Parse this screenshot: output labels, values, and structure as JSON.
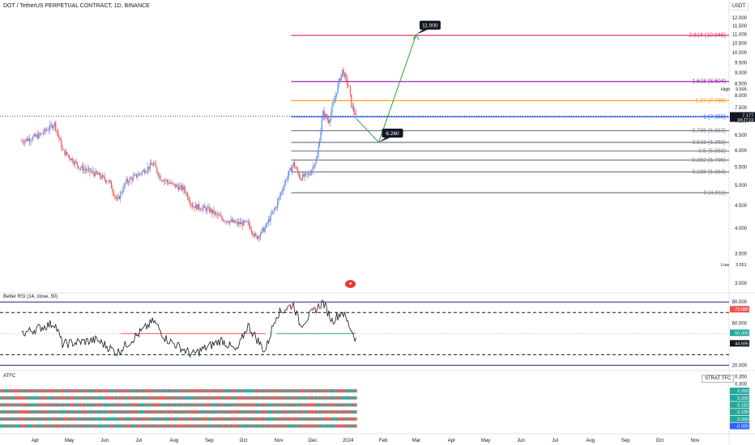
{
  "header": {
    "title": "DOT / TetherUS PERPETUAL CONTRACT, 1D, BINANCE",
    "currency": "USDT"
  },
  "indicators": {
    "rsi_title": "Better RSI (14, close, 50)",
    "atfc_title": "ATFC",
    "strat_label": "STRAT TFC",
    "rsi_tags": [
      "73.086",
      "50.000",
      "44.595"
    ],
    "atfc_tags": [
      "0.250",
      "0.200",
      "0.150",
      "0.100",
      "0.050",
      "-0.000"
    ]
  },
  "colors": {
    "up": "#26a69a",
    "down": "#ef5350",
    "candle_up": "#5b8def",
    "fib_top": "#e91e63",
    "fib_1618": "#9c27b0",
    "fib_127": "#ff9800",
    "fib_1": "#2962ff",
    "fib_gray": "#787b86",
    "arrow": "#2e9d34",
    "rsi_band": "#1a237e",
    "rsi_line": "#131722"
  },
  "chart_data": {
    "type": "candlestick",
    "symbol": "DOT/USDT",
    "timeframe": "1D",
    "y_axis": {
      "scale": "log",
      "ticks": [
        "12.000",
        "11.500",
        "11.000",
        "10.500",
        "10.000",
        "9.500",
        "9.000",
        "8.500",
        "8.000",
        "7.500",
        "7.000",
        "6.500",
        "6.000",
        "5.500",
        "5.000",
        "4.500",
        "4.000",
        "3.500",
        "3.000"
      ],
      "ylim": [
        3.0,
        12.0
      ]
    },
    "x_axis": {
      "ticks": [
        "Apr",
        "May",
        "Jun",
        "Jul",
        "Aug",
        "Sep",
        "Oct",
        "Nov",
        "Dec",
        "2024",
        "Feb",
        "Mar",
        "Apr",
        "May",
        "Jun",
        "Jul",
        "Aug",
        "Sep",
        "Oct",
        "Nov"
      ]
    },
    "price_path": [
      {
        "date": "2023-03-20",
        "value": 6.3
      },
      {
        "date": "2023-04-05",
        "value": 6.5
      },
      {
        "date": "2023-04-18",
        "value": 6.9
      },
      {
        "date": "2023-04-25",
        "value": 6.0
      },
      {
        "date": "2023-05-10",
        "value": 5.5
      },
      {
        "date": "2023-05-25",
        "value": 5.3
      },
      {
        "date": "2023-06-05",
        "value": 5.1
      },
      {
        "date": "2023-06-12",
        "value": 4.6
      },
      {
        "date": "2023-06-20",
        "value": 5.1
      },
      {
        "date": "2023-07-01",
        "value": 5.3
      },
      {
        "date": "2023-07-14",
        "value": 5.6
      },
      {
        "date": "2023-07-20",
        "value": 5.2
      },
      {
        "date": "2023-08-01",
        "value": 5.0
      },
      {
        "date": "2023-08-10",
        "value": 4.9
      },
      {
        "date": "2023-08-17",
        "value": 4.5
      },
      {
        "date": "2023-09-01",
        "value": 4.4
      },
      {
        "date": "2023-09-12",
        "value": 4.2
      },
      {
        "date": "2023-09-25",
        "value": 4.1
      },
      {
        "date": "2023-10-05",
        "value": 4.1
      },
      {
        "date": "2023-10-12",
        "value": 3.8
      },
      {
        "date": "2023-10-20",
        "value": 4.0
      },
      {
        "date": "2023-10-30",
        "value": 4.5
      },
      {
        "date": "2023-11-08",
        "value": 5.2
      },
      {
        "date": "2023-11-14",
        "value": 5.6
      },
      {
        "date": "2023-11-20",
        "value": 5.2
      },
      {
        "date": "2023-11-28",
        "value": 5.3
      },
      {
        "date": "2023-12-05",
        "value": 5.8
      },
      {
        "date": "2023-12-10",
        "value": 7.3
      },
      {
        "date": "2023-12-15",
        "value": 7.0
      },
      {
        "date": "2023-12-20",
        "value": 7.8
      },
      {
        "date": "2023-12-24",
        "value": 8.6
      },
      {
        "date": "2023-12-27",
        "value": 9.1
      },
      {
        "date": "2024-01-02",
        "value": 8.3
      },
      {
        "date": "2024-01-04",
        "value": 7.6
      },
      {
        "date": "2024-01-08",
        "value": 7.177
      }
    ],
    "price_label": {
      "value": "7.177",
      "countdown": "04:27:19"
    },
    "high": {
      "label": "High",
      "value": "9.595"
    },
    "low": {
      "label": "Low",
      "value": "3.551"
    },
    "fib_levels": [
      {
        "ratio": "2.618",
        "price": 10.948,
        "label": "2.618 (10.948)",
        "color": "#e91e63"
      },
      {
        "ratio": "1.618",
        "price": 8.604,
        "label": "1.618 (8.604)",
        "color": "#9c27b0"
      },
      {
        "ratio": "1.27",
        "price": 7.788,
        "label": "1.27 (7.788)",
        "color": "#ff9800"
      },
      {
        "ratio": "1",
        "price": 7.155,
        "label": "1 (7.155)",
        "color": "#2962ff"
      },
      {
        "ratio": "0.786",
        "price": 6.653,
        "label": "0.786 (6.653)",
        "color": "#787b86"
      },
      {
        "ratio": "0.618",
        "price": 6.26,
        "label": "0.618 (6.260)",
        "color": "#787b86"
      },
      {
        "ratio": "0.5",
        "price": 5.983,
        "label": "0.5 (5.983)",
        "color": "#787b86"
      },
      {
        "ratio": "0.382",
        "price": 5.706,
        "label": "0.382 (5.706)",
        "color": "#787b86"
      },
      {
        "ratio": "0.236",
        "price": 5.364,
        "label": "0.236 (5.364)",
        "color": "#787b86"
      },
      {
        "ratio": "0",
        "price": 4.811,
        "label": "0 (4.811)",
        "color": "#787b86"
      }
    ],
    "projection": [
      {
        "date": "2024-01-08",
        "value": 7.1
      },
      {
        "date": "2024-01-28",
        "value": 6.26,
        "label": "6.260"
      },
      {
        "date": "2024-03-01",
        "value": 11.0,
        "label": "11.000"
      }
    ],
    "rsi": {
      "axis_ticks": [
        "80.000",
        "60.000",
        "40.000",
        "20.000"
      ],
      "ylim": [
        18,
        84
      ],
      "levels": [
        80,
        70,
        50,
        30,
        20
      ],
      "path": [
        {
          "date": "2023-03-20",
          "value": 50
        },
        {
          "date": "2023-04-18",
          "value": 60
        },
        {
          "date": "2023-04-25",
          "value": 40
        },
        {
          "date": "2023-05-25",
          "value": 44
        },
        {
          "date": "2023-06-12",
          "value": 32
        },
        {
          "date": "2023-07-14",
          "value": 62
        },
        {
          "date": "2023-07-25",
          "value": 45
        },
        {
          "date": "2023-08-17",
          "value": 30
        },
        {
          "date": "2023-09-12",
          "value": 44
        },
        {
          "date": "2023-09-25",
          "value": 33
        },
        {
          "date": "2023-10-05",
          "value": 58
        },
        {
          "date": "2023-10-20",
          "value": 33
        },
        {
          "date": "2023-10-30",
          "value": 68
        },
        {
          "date": "2023-11-14",
          "value": 78
        },
        {
          "date": "2023-11-20",
          "value": 58
        },
        {
          "date": "2023-12-10",
          "value": 80
        },
        {
          "date": "2023-12-18",
          "value": 62
        },
        {
          "date": "2023-12-27",
          "value": 71
        },
        {
          "date": "2024-01-08",
          "value": 44.595
        }
      ]
    },
    "atfc": {
      "axis_ticks": [
        "0.350",
        "0.300",
        "0.250",
        "0.200",
        "0.150",
        "0.100",
        "0.050",
        "-0.000"
      ],
      "ylim": [
        -0.02,
        0.36
      ],
      "rows": [
        0.25,
        0.2,
        0.15,
        0.1,
        0.05,
        0.0
      ]
    }
  }
}
